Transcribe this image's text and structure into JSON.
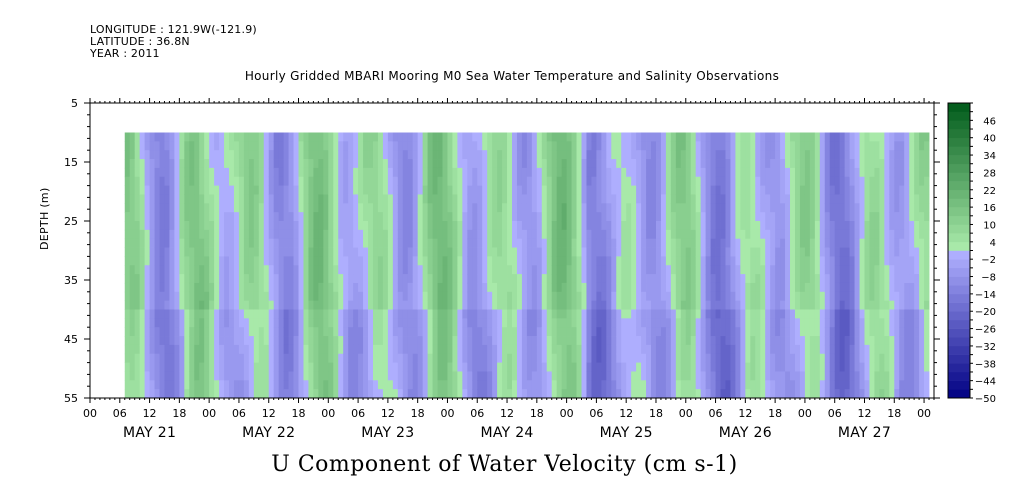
{
  "header": {
    "longitude": "LONGITUDE : 121.9W(-121.9)",
    "latitude": "LATITUDE : 36.8N",
    "year": "YEAR : 2011"
  },
  "chart_data": {
    "type": "heatmap",
    "title": "Hourly Gridded MBARI Mooring M0 Sea Water Temperature and Salinity Observations",
    "main_title": "U Component of Water Velocity (cm s-1)",
    "ylabel": "DEPTH (m)",
    "xlabel": "",
    "ylim": [
      5,
      55
    ],
    "y_inverted": true,
    "y_ticks": [
      5,
      15,
      25,
      35,
      45,
      55
    ],
    "y_data_range": [
      10,
      55
    ],
    "x_hour_ticks": [
      "00",
      "06",
      "12",
      "18",
      "00",
      "06",
      "12",
      "18",
      "00",
      "06",
      "12",
      "18",
      "00",
      "06",
      "12",
      "18",
      "00",
      "06",
      "12",
      "18",
      "00",
      "06",
      "12",
      "18",
      "00",
      "06",
      "12",
      "18",
      "00"
    ],
    "x_day_labels": [
      "MAY 21",
      "MAY 22",
      "MAY 23",
      "MAY 24",
      "MAY 25",
      "MAY 26",
      "MAY 27"
    ],
    "x_range_hours": [
      0,
      170
    ],
    "data_start_hour": 7,
    "data_end_hour": 169,
    "colorbar": {
      "levels": [
        46,
        40,
        34,
        28,
        22,
        16,
        10,
        4,
        -2,
        -8,
        -14,
        -20,
        -26,
        -32,
        -38,
        -44,
        -50
      ],
      "min": -50,
      "max": 52,
      "step": 3
    },
    "colors": {
      "positive_strong": "#00e040",
      "positive_weak": "#90f090",
      "near_zero": "#a8f0a8",
      "negative_weak": "#a8a8ff",
      "negative_strong": "#5858f0"
    }
  }
}
